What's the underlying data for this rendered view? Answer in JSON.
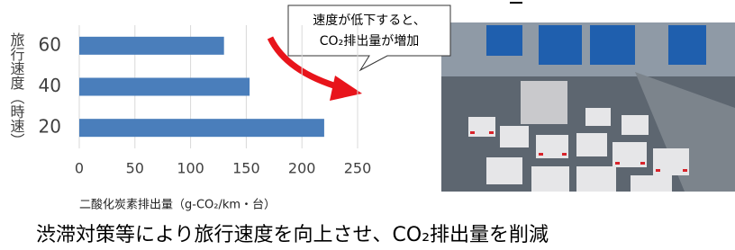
{
  "chart_data": {
    "type": "bar",
    "orientation": "horizontal",
    "y_label": "旅行速度（時速）",
    "x_label": "二酸化炭素排出量（g-CO₂/km・台）",
    "categories": [
      "60",
      "40",
      "20"
    ],
    "values": [
      130,
      153,
      220
    ],
    "color": "#4a7ebb",
    "xlim": [
      0,
      250
    ],
    "xticks": [
      0,
      50,
      100,
      150,
      200,
      250
    ],
    "grid": true
  },
  "annotation": {
    "lines": [
      "速度が低下すると、",
      "CO₂排出量が増加"
    ]
  },
  "caption": "渋滞対策等により旅行速度を向上させ、CO₂排出量を削減"
}
